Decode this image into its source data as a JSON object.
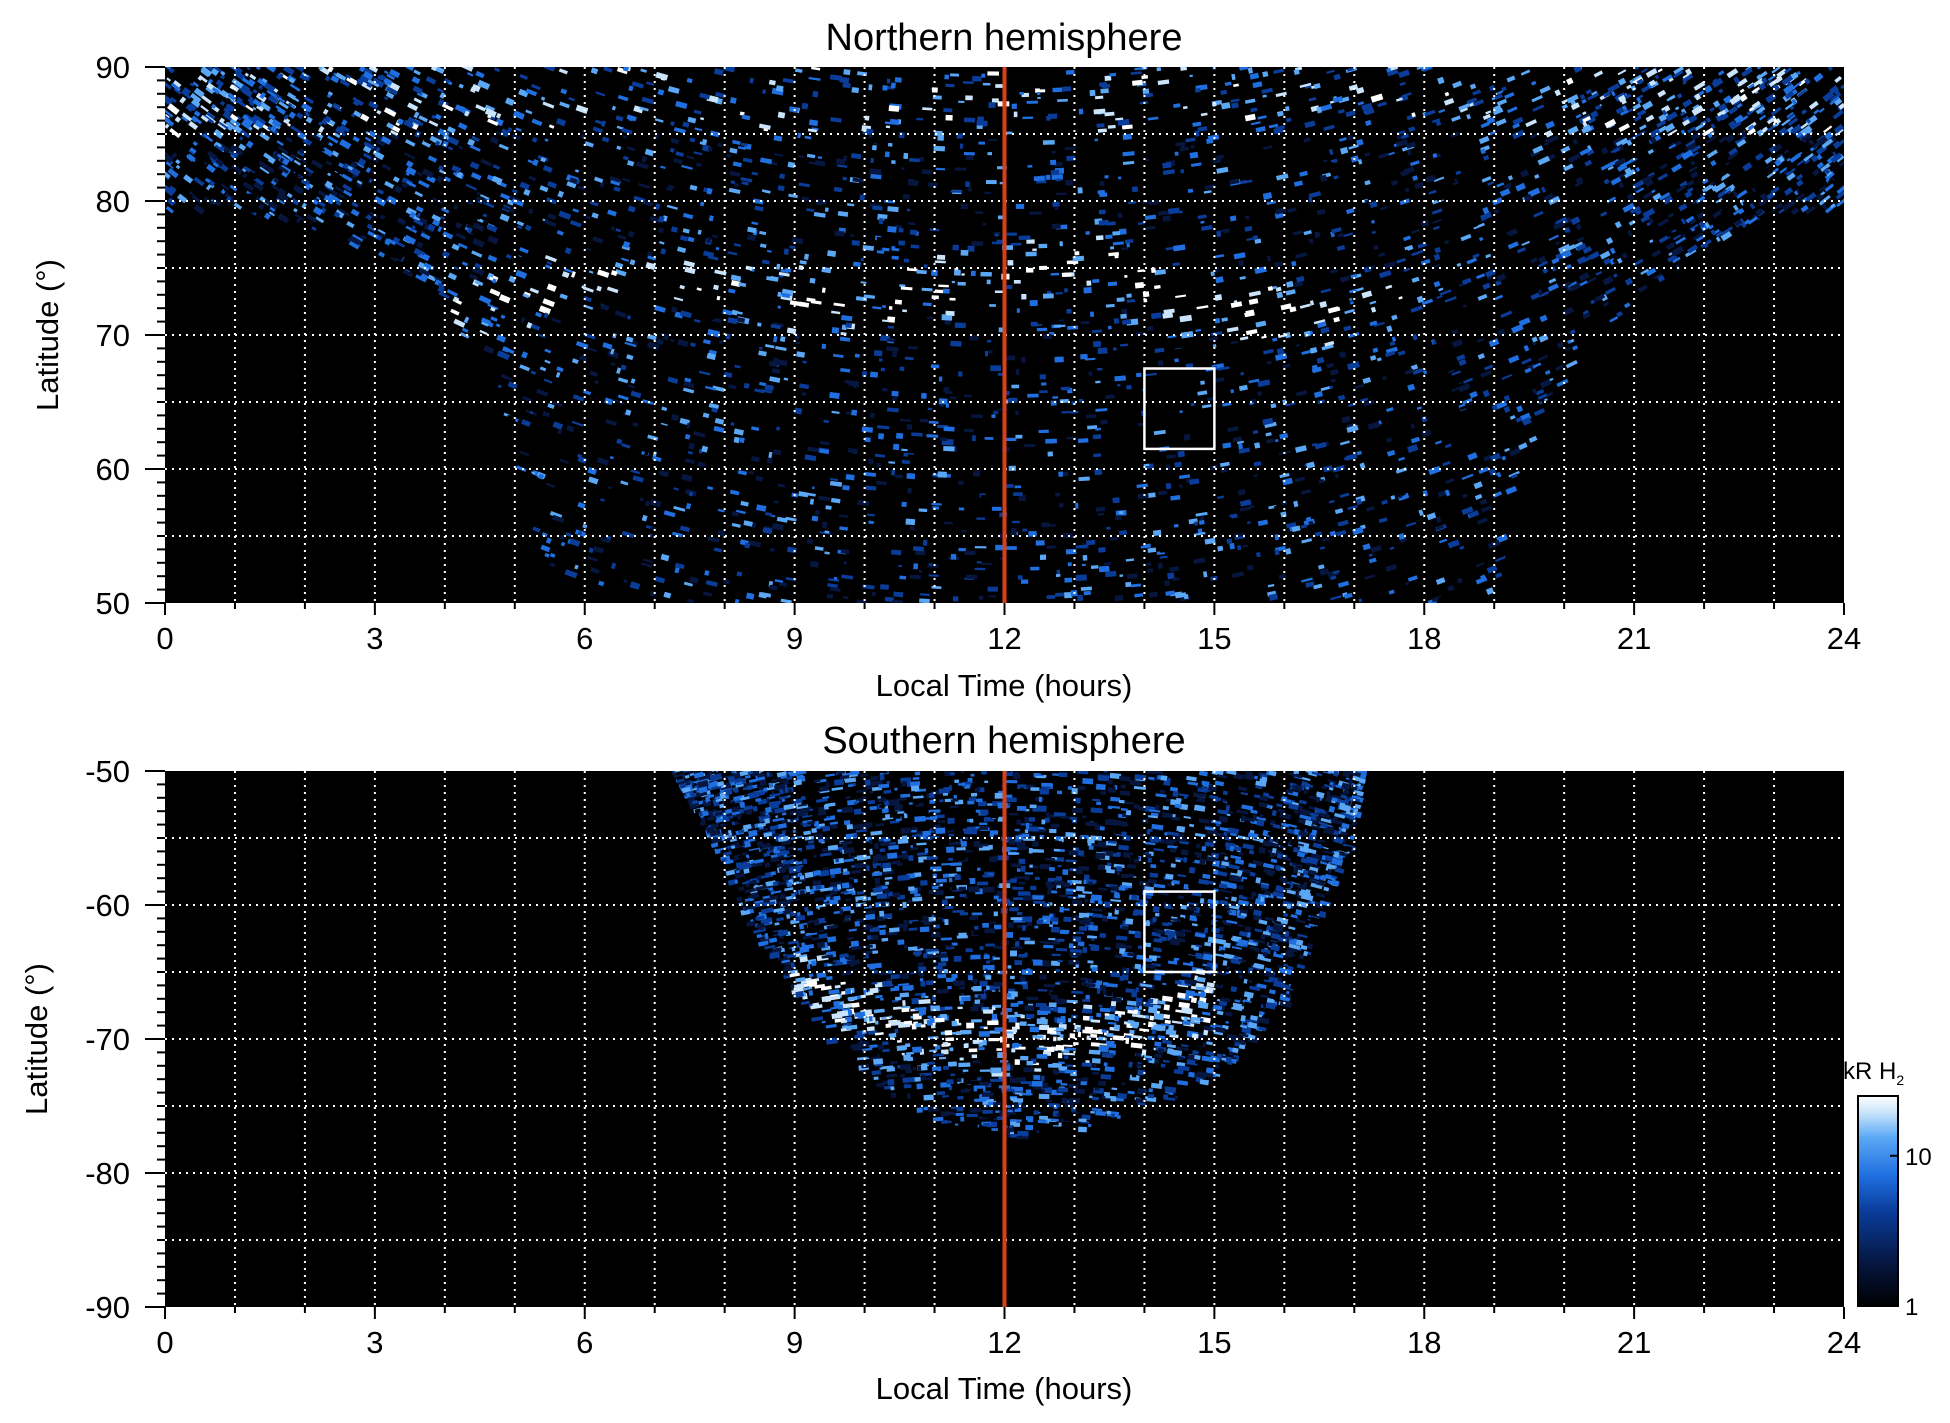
{
  "colors": {
    "background": "#000000",
    "emission": [
      "#000000",
      "#06163f",
      "#0a3d9a",
      "#1f6fe0",
      "#5aa7f5",
      "#c9e4fb",
      "#ffffff"
    ],
    "noon_line": "#d9401a",
    "grid": "#ffffff",
    "box": "#ffffff"
  },
  "colorbar": {
    "label_main": "kR H",
    "label_sub": "2",
    "scale": "log",
    "range": [
      1,
      25
    ],
    "ticks": [
      {
        "value": 10,
        "label": "10"
      },
      {
        "value": 1,
        "label": "1"
      }
    ]
  },
  "chart_data": [
    {
      "type": "heatmap",
      "title": "Northern hemisphere",
      "xlabel": "Local Time (hours)",
      "ylabel": "Latitude (°)",
      "xlim": [
        0,
        24
      ],
      "ylim": [
        50,
        90
      ],
      "xticks": [
        {
          "value": 0,
          "label": "0"
        },
        {
          "value": 3,
          "label": "3"
        },
        {
          "value": 6,
          "label": "6"
        },
        {
          "value": 9,
          "label": "9"
        },
        {
          "value": 12,
          "label": "12"
        },
        {
          "value": 15,
          "label": "15"
        },
        {
          "value": 18,
          "label": "18"
        },
        {
          "value": 21,
          "label": "21"
        },
        {
          "value": 24,
          "label": "24"
        }
      ],
      "yticks": [
        {
          "value": 90,
          "label": "90"
        },
        {
          "value": 80,
          "label": "80"
        },
        {
          "value": 70,
          "label": "70"
        },
        {
          "value": 60,
          "label": "60"
        },
        {
          "value": 50,
          "label": "50"
        }
      ],
      "grid": true,
      "noon_line_lt": 12,
      "coverage_boundary_lt_lat": [
        [
          0,
          79
        ],
        [
          1,
          79.5
        ],
        [
          2,
          78
        ],
        [
          3,
          76
        ],
        [
          4,
          72.5
        ],
        [
          4.6,
          67
        ],
        [
          5,
          61
        ],
        [
          5.3,
          55
        ],
        [
          5.6,
          50
        ],
        [
          19.1,
          50
        ],
        [
          19.2,
          55
        ],
        [
          19.4,
          60
        ],
        [
          19.8,
          65
        ],
        [
          20.3,
          69
        ],
        [
          21,
          72.5
        ],
        [
          22,
          76.5
        ],
        [
          23,
          79
        ],
        [
          24,
          79.5
        ]
      ],
      "aurora_band_lt_lat": [
        [
          4,
          71.5
        ],
        [
          5,
          73
        ],
        [
          6,
          74
        ],
        [
          7,
          74.2
        ],
        [
          8,
          74
        ],
        [
          9,
          73
        ],
        [
          10,
          72.5
        ],
        [
          11,
          73.5
        ],
        [
          12,
          75
        ],
        [
          13,
          75.5
        ],
        [
          14,
          74
        ],
        [
          15,
          72
        ],
        [
          16,
          71.5
        ],
        [
          17,
          72
        ],
        [
          18,
          73.5
        ]
      ],
      "region_box": {
        "lt": [
          14,
          15
        ],
        "lat": [
          61.5,
          67.5
        ]
      }
    },
    {
      "type": "heatmap",
      "title": "Southern hemisphere",
      "xlabel": "Local Time (hours)",
      "ylabel": "Latitude (°)",
      "xlim": [
        0,
        24
      ],
      "ylim": [
        -90,
        -50
      ],
      "xticks": [
        {
          "value": 0,
          "label": "0"
        },
        {
          "value": 3,
          "label": "3"
        },
        {
          "value": 6,
          "label": "6"
        },
        {
          "value": 9,
          "label": "9"
        },
        {
          "value": 12,
          "label": "12"
        },
        {
          "value": 15,
          "label": "15"
        },
        {
          "value": 18,
          "label": "18"
        },
        {
          "value": 21,
          "label": "21"
        },
        {
          "value": 24,
          "label": "24"
        }
      ],
      "yticks": [
        {
          "value": -50,
          "label": "-50"
        },
        {
          "value": -60,
          "label": "-60"
        },
        {
          "value": -70,
          "label": "-70"
        },
        {
          "value": -80,
          "label": "-80"
        },
        {
          "value": -90,
          "label": "-90"
        }
      ],
      "grid": true,
      "noon_line_lt": 12,
      "coverage_boundary_lt_lat": [
        [
          7.3,
          -50
        ],
        [
          7.8,
          -55
        ],
        [
          8.2,
          -60
        ],
        [
          8.8,
          -65
        ],
        [
          9.5,
          -70
        ],
        [
          10.3,
          -74
        ],
        [
          11.2,
          -76.5
        ],
        [
          12,
          -77.5
        ],
        [
          13,
          -77
        ],
        [
          14,
          -75.5
        ],
        [
          15,
          -73
        ],
        [
          16,
          -68
        ],
        [
          16.6,
          -60
        ],
        [
          17,
          -55
        ],
        [
          17.1,
          -50
        ]
      ],
      "aurora_band_lt_lat": [
        [
          9,
          -65
        ],
        [
          10,
          -68
        ],
        [
          11,
          -69.5
        ],
        [
          12,
          -70
        ],
        [
          13,
          -70
        ],
        [
          14,
          -69
        ],
        [
          15,
          -67
        ]
      ],
      "region_box": {
        "lt": [
          14,
          15
        ],
        "lat": [
          -65,
          -59
        ]
      }
    }
  ]
}
